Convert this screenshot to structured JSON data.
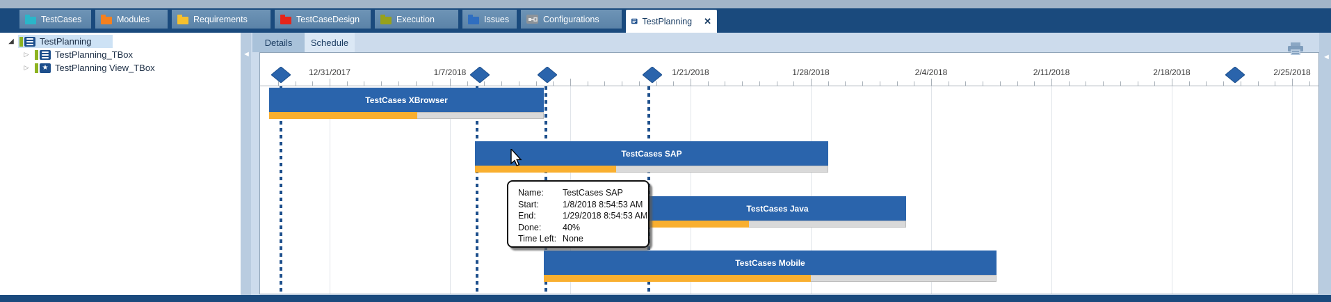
{
  "main_tabs": [
    {
      "label": "TestCases",
      "icon": "folder",
      "color": "#2ab6c9",
      "active": false
    },
    {
      "label": "Modules",
      "icon": "folder",
      "color": "#f5801e",
      "active": false
    },
    {
      "label": "Requirements",
      "icon": "folder",
      "color": "#f6c02e",
      "active": false
    },
    {
      "label": "TestCaseDesign",
      "icon": "folder",
      "color": "#e62519",
      "active": false
    },
    {
      "label": "Execution",
      "icon": "folder",
      "color": "#97a11b",
      "active": false
    },
    {
      "label": "Issues",
      "icon": "folder",
      "color": "#2f6ec0",
      "active": false
    },
    {
      "label": "Configurations",
      "icon": "configurations",
      "color": "#9aa0a6",
      "active": false
    },
    {
      "label": "TestPlanning",
      "icon": "document-list",
      "color": "#1d4f8c",
      "active": true,
      "close_icon": "x"
    }
  ],
  "tree": {
    "items": [
      {
        "label": "TestPlanning",
        "expanded": true,
        "icon": "document-list",
        "selected": true,
        "indent": 0
      },
      {
        "label": "TestPlanning_TBox",
        "expanded": false,
        "icon": "document-list",
        "selected": false,
        "indent": 1
      },
      {
        "label": "TestPlanning View_TBox",
        "expanded": false,
        "icon": "star",
        "selected": false,
        "indent": 1
      }
    ]
  },
  "view_tabs": [
    {
      "label": "Details",
      "active": false
    },
    {
      "label": "Schedule",
      "active": true
    }
  ],
  "gantt": {
    "timeline_labels": [
      "12/31/2017",
      "1/7/2018",
      "1/21/2018",
      "1/28/2018",
      "2/4/2018",
      "2/11/2018",
      "2/18/2018",
      "2/25/2018"
    ],
    "tasks": [
      {
        "name": "TestCases XBrowser",
        "done_pct": 54
      },
      {
        "name": "TestCases SAP",
        "done_pct": 40
      },
      {
        "name": "TestCases Java",
        "done_pct": 39
      },
      {
        "name": "TestCases Mobile",
        "done_pct": 59
      }
    ]
  },
  "tooltip": {
    "rows": [
      {
        "label": "Name:",
        "value": "TestCases SAP"
      },
      {
        "label": "Start:",
        "value": "1/8/2018 8:54:53 AM"
      },
      {
        "label": "End:",
        "value": "1/29/2018 8:54:53 AM"
      },
      {
        "label": "Done:",
        "value": "40%"
      },
      {
        "label": "Time Left:",
        "value": "None"
      }
    ]
  },
  "colors": {
    "tab_bar_navy": "#1a4a7d",
    "bar_blue": "#2a64ac",
    "progress_orange": "#f9af2f",
    "progress_rest": "#d9d9d9",
    "milestone_blue": "#2a64ac",
    "dashline_navy": "#1d4f8c",
    "selected_tree_bg": "#cde2f5"
  }
}
